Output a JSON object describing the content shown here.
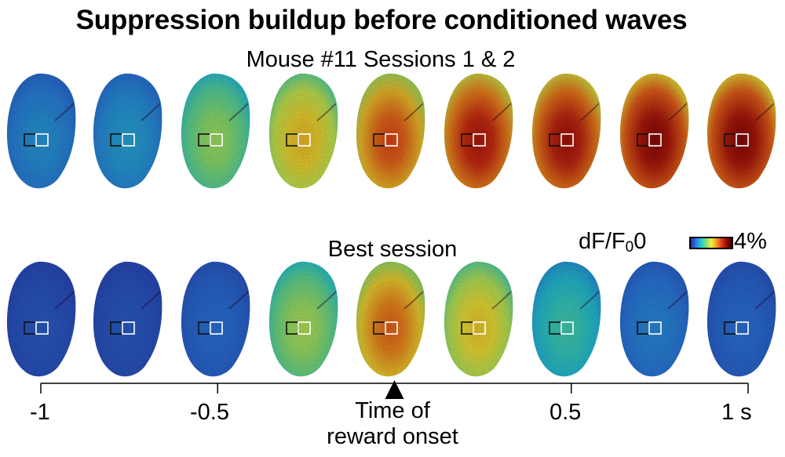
{
  "title": "Suppression buildup before conditioned waves",
  "top_row": {
    "label": "Mouse #11  Sessions 1 & 2",
    "intensities": [
      0.18,
      0.2,
      0.42,
      0.58,
      0.74,
      0.84,
      0.86,
      0.9,
      0.9
    ]
  },
  "bottom_row": {
    "label": "Best session",
    "intensities": [
      0.08,
      0.08,
      0.12,
      0.44,
      0.7,
      0.56,
      0.3,
      0.16,
      0.12
    ]
  },
  "colorbar": {
    "label": "dF/F",
    "subscript": "0",
    "min": "0",
    "max": "4%",
    "colors": [
      "#2a2fa8",
      "#2a78e0",
      "#22c9d8",
      "#7be07a",
      "#f2f03a",
      "#f5a020",
      "#e03a16",
      "#9a0a06",
      "#3a0000"
    ]
  },
  "timeline": {
    "ticks": [
      {
        "value": -1,
        "label": "-1"
      },
      {
        "value": -0.5,
        "label": "-0.5"
      },
      {
        "value": 0.5,
        "label": "0.5"
      },
      {
        "value": 1,
        "label": "1 s"
      }
    ],
    "onset_label_line1": "Time of",
    "onset_label_line2": "reward onset"
  },
  "roi_colors": {
    "left": "#111111",
    "right": "#ffffff"
  }
}
